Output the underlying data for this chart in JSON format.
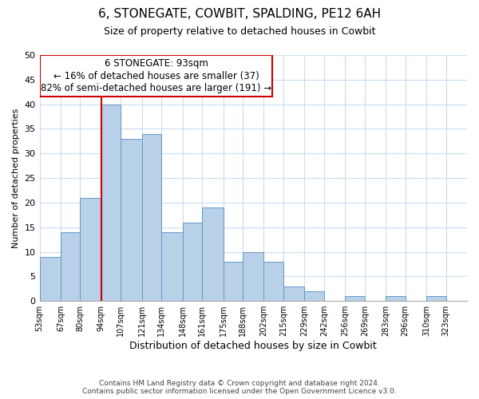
{
  "title": "6, STONEGATE, COWBIT, SPALDING, PE12 6AH",
  "subtitle": "Size of property relative to detached houses in Cowbit",
  "xlabel": "Distribution of detached houses by size in Cowbit",
  "ylabel": "Number of detached properties",
  "bar_color": "#b8d0e8",
  "bar_edge_color": "#6699cc",
  "background_color": "#ffffff",
  "grid_color": "#c8ddf0",
  "annotation_box_color": "#cc0000",
  "annotation_line_color": "#cc0000",
  "property_line_x": 94,
  "annotation_title": "6 STONEGATE: 93sqm",
  "annotation_line1": "← 16% of detached houses are smaller (37)",
  "annotation_line2": "82% of semi-detached houses are larger (191) →",
  "categories": [
    "53sqm",
    "67sqm",
    "80sqm",
    "94sqm",
    "107sqm",
    "121sqm",
    "134sqm",
    "148sqm",
    "161sqm",
    "175sqm",
    "188sqm",
    "202sqm",
    "215sqm",
    "229sqm",
    "242sqm",
    "256sqm",
    "269sqm",
    "283sqm",
    "296sqm",
    "310sqm",
    "323sqm"
  ],
  "bin_edges": [
    53,
    67,
    80,
    94,
    107,
    121,
    134,
    148,
    161,
    175,
    188,
    202,
    215,
    229,
    242,
    256,
    269,
    283,
    296,
    310,
    323,
    337
  ],
  "values": [
    9,
    14,
    21,
    40,
    33,
    34,
    14,
    16,
    19,
    8,
    10,
    8,
    3,
    2,
    0,
    1,
    0,
    1,
    0,
    1,
    0
  ],
  "ylim": [
    0,
    50
  ],
  "yticks": [
    0,
    5,
    10,
    15,
    20,
    25,
    30,
    35,
    40,
    45,
    50
  ],
  "footer_line1": "Contains HM Land Registry data © Crown copyright and database right 2024.",
  "footer_line2": "Contains public sector information licensed under the Open Government Licence v3.0."
}
